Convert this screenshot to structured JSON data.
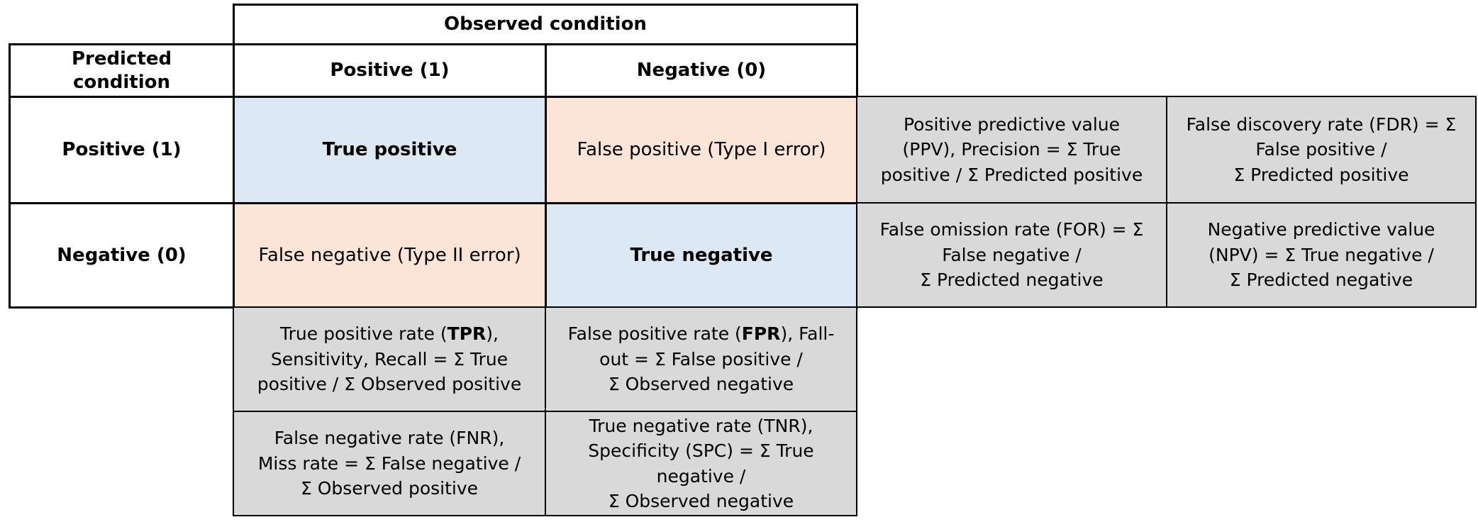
{
  "colors": {
    "correct_cell_bg": "#dce9f4",
    "error_cell_bg": "#fce4d6",
    "metric_cell_bg": "#d9d9d9",
    "border": "#000000",
    "page_bg": "#ffffff"
  },
  "headers": {
    "observed_condition": "Observed condition",
    "predicted_condition_lines": [
      "Predicted",
      "condition"
    ],
    "observed_positive": "Positive (1)",
    "observed_negative": "Negative (0)",
    "predicted_positive": "Positive (1)",
    "predicted_negative": "Negative (0)"
  },
  "matrix_cells": {
    "true_positive": "True positive",
    "false_positive": "False positive (Type I error)",
    "false_negative": "False negative (Type II error)",
    "true_negative": "True negative"
  },
  "metric_cells": {
    "ppv": {
      "lines": [
        "Positive predictive value",
        "(PPV), Precision = Σ True",
        "positive / Σ Predicted positive"
      ]
    },
    "fdr": {
      "lines": [
        "False discovery rate (FDR) = Σ",
        "False positive /",
        "Σ Predicted positive"
      ]
    },
    "for": {
      "lines": [
        "False omission rate (FOR) = Σ",
        "False negative /",
        "Σ Predicted negative"
      ]
    },
    "npv": {
      "lines": [
        "Negative predictive value",
        "(NPV) = Σ True negative /",
        "Σ Predicted negative"
      ]
    },
    "tpr": {
      "lines": [
        [
          {
            "text": "True positive rate (",
            "bold": false
          },
          {
            "text": "TPR",
            "bold": true
          },
          {
            "text": "),",
            "bold": false
          }
        ],
        "Sensitivity, Recall = Σ True",
        "positive / Σ Observed positive"
      ]
    },
    "fpr": {
      "lines": [
        [
          {
            "text": "False positive rate (",
            "bold": false
          },
          {
            "text": "FPR",
            "bold": true
          },
          {
            "text": "), Fall-",
            "bold": false
          }
        ],
        "out = Σ False positive /",
        "Σ Observed negative"
      ]
    },
    "fnr": {
      "lines": [
        "False negative rate (FNR),",
        "Miss rate = Σ False negative /",
        "Σ Observed positive"
      ]
    },
    "tnr": {
      "lines": [
        "True negative rate (TNR),",
        "Specificity (SPC) = Σ True",
        "negative /",
        "Σ Observed negative"
      ]
    }
  }
}
